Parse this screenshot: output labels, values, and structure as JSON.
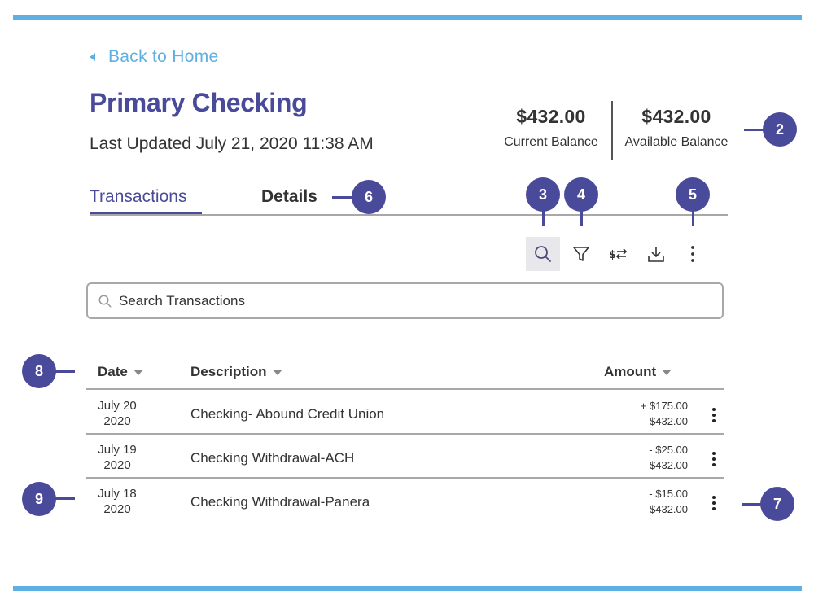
{
  "back_link": {
    "label": "Back to Home"
  },
  "account": {
    "title": "Primary Checking",
    "last_updated": "Last Updated July 21, 2020 11:38 AM"
  },
  "balances": {
    "current": {
      "amount": "$432.00",
      "caption": "Current Balance"
    },
    "available": {
      "amount": "$432.00",
      "caption": "Available Balance"
    }
  },
  "tabs": [
    {
      "label": "Transactions",
      "active": true
    },
    {
      "label": "Details",
      "active": false
    }
  ],
  "toolbar": {
    "icons": [
      "search-icon",
      "filter-icon",
      "transfer-icon",
      "download-icon",
      "more-vertical-icon"
    ],
    "active_icon": "search-icon"
  },
  "search": {
    "placeholder": "Search Transactions",
    "value": ""
  },
  "table": {
    "headers": {
      "date": "Date",
      "description": "Description",
      "amount": "Amount"
    },
    "rows": [
      {
        "date_line1": "July 20",
        "date_line2": "2020",
        "description": "Checking- Abound Credit Union",
        "amount": "+ $175.00",
        "balance": "$432.00"
      },
      {
        "date_line1": "July 19",
        "date_line2": "2020",
        "description": "Checking Withdrawal-ACH",
        "amount": "- $25.00",
        "balance": "$432.00"
      },
      {
        "date_line1": "July 18",
        "date_line2": "2020",
        "description": "Checking Withdrawal-Panera",
        "amount": "- $15.00",
        "balance": "$432.00"
      }
    ]
  },
  "annotations": {
    "balance_badge": "2",
    "search_badge": "3",
    "filter_badge": "4",
    "more_badge": "5",
    "details_badge": "6",
    "row_menu_badge": "7",
    "header_badge": "8",
    "row_badge": "9"
  },
  "colors": {
    "accent_blue": "#5db0e1",
    "brand_purple": "#4a4a9a",
    "text": "#333333",
    "divider": "#a8a8a8"
  }
}
